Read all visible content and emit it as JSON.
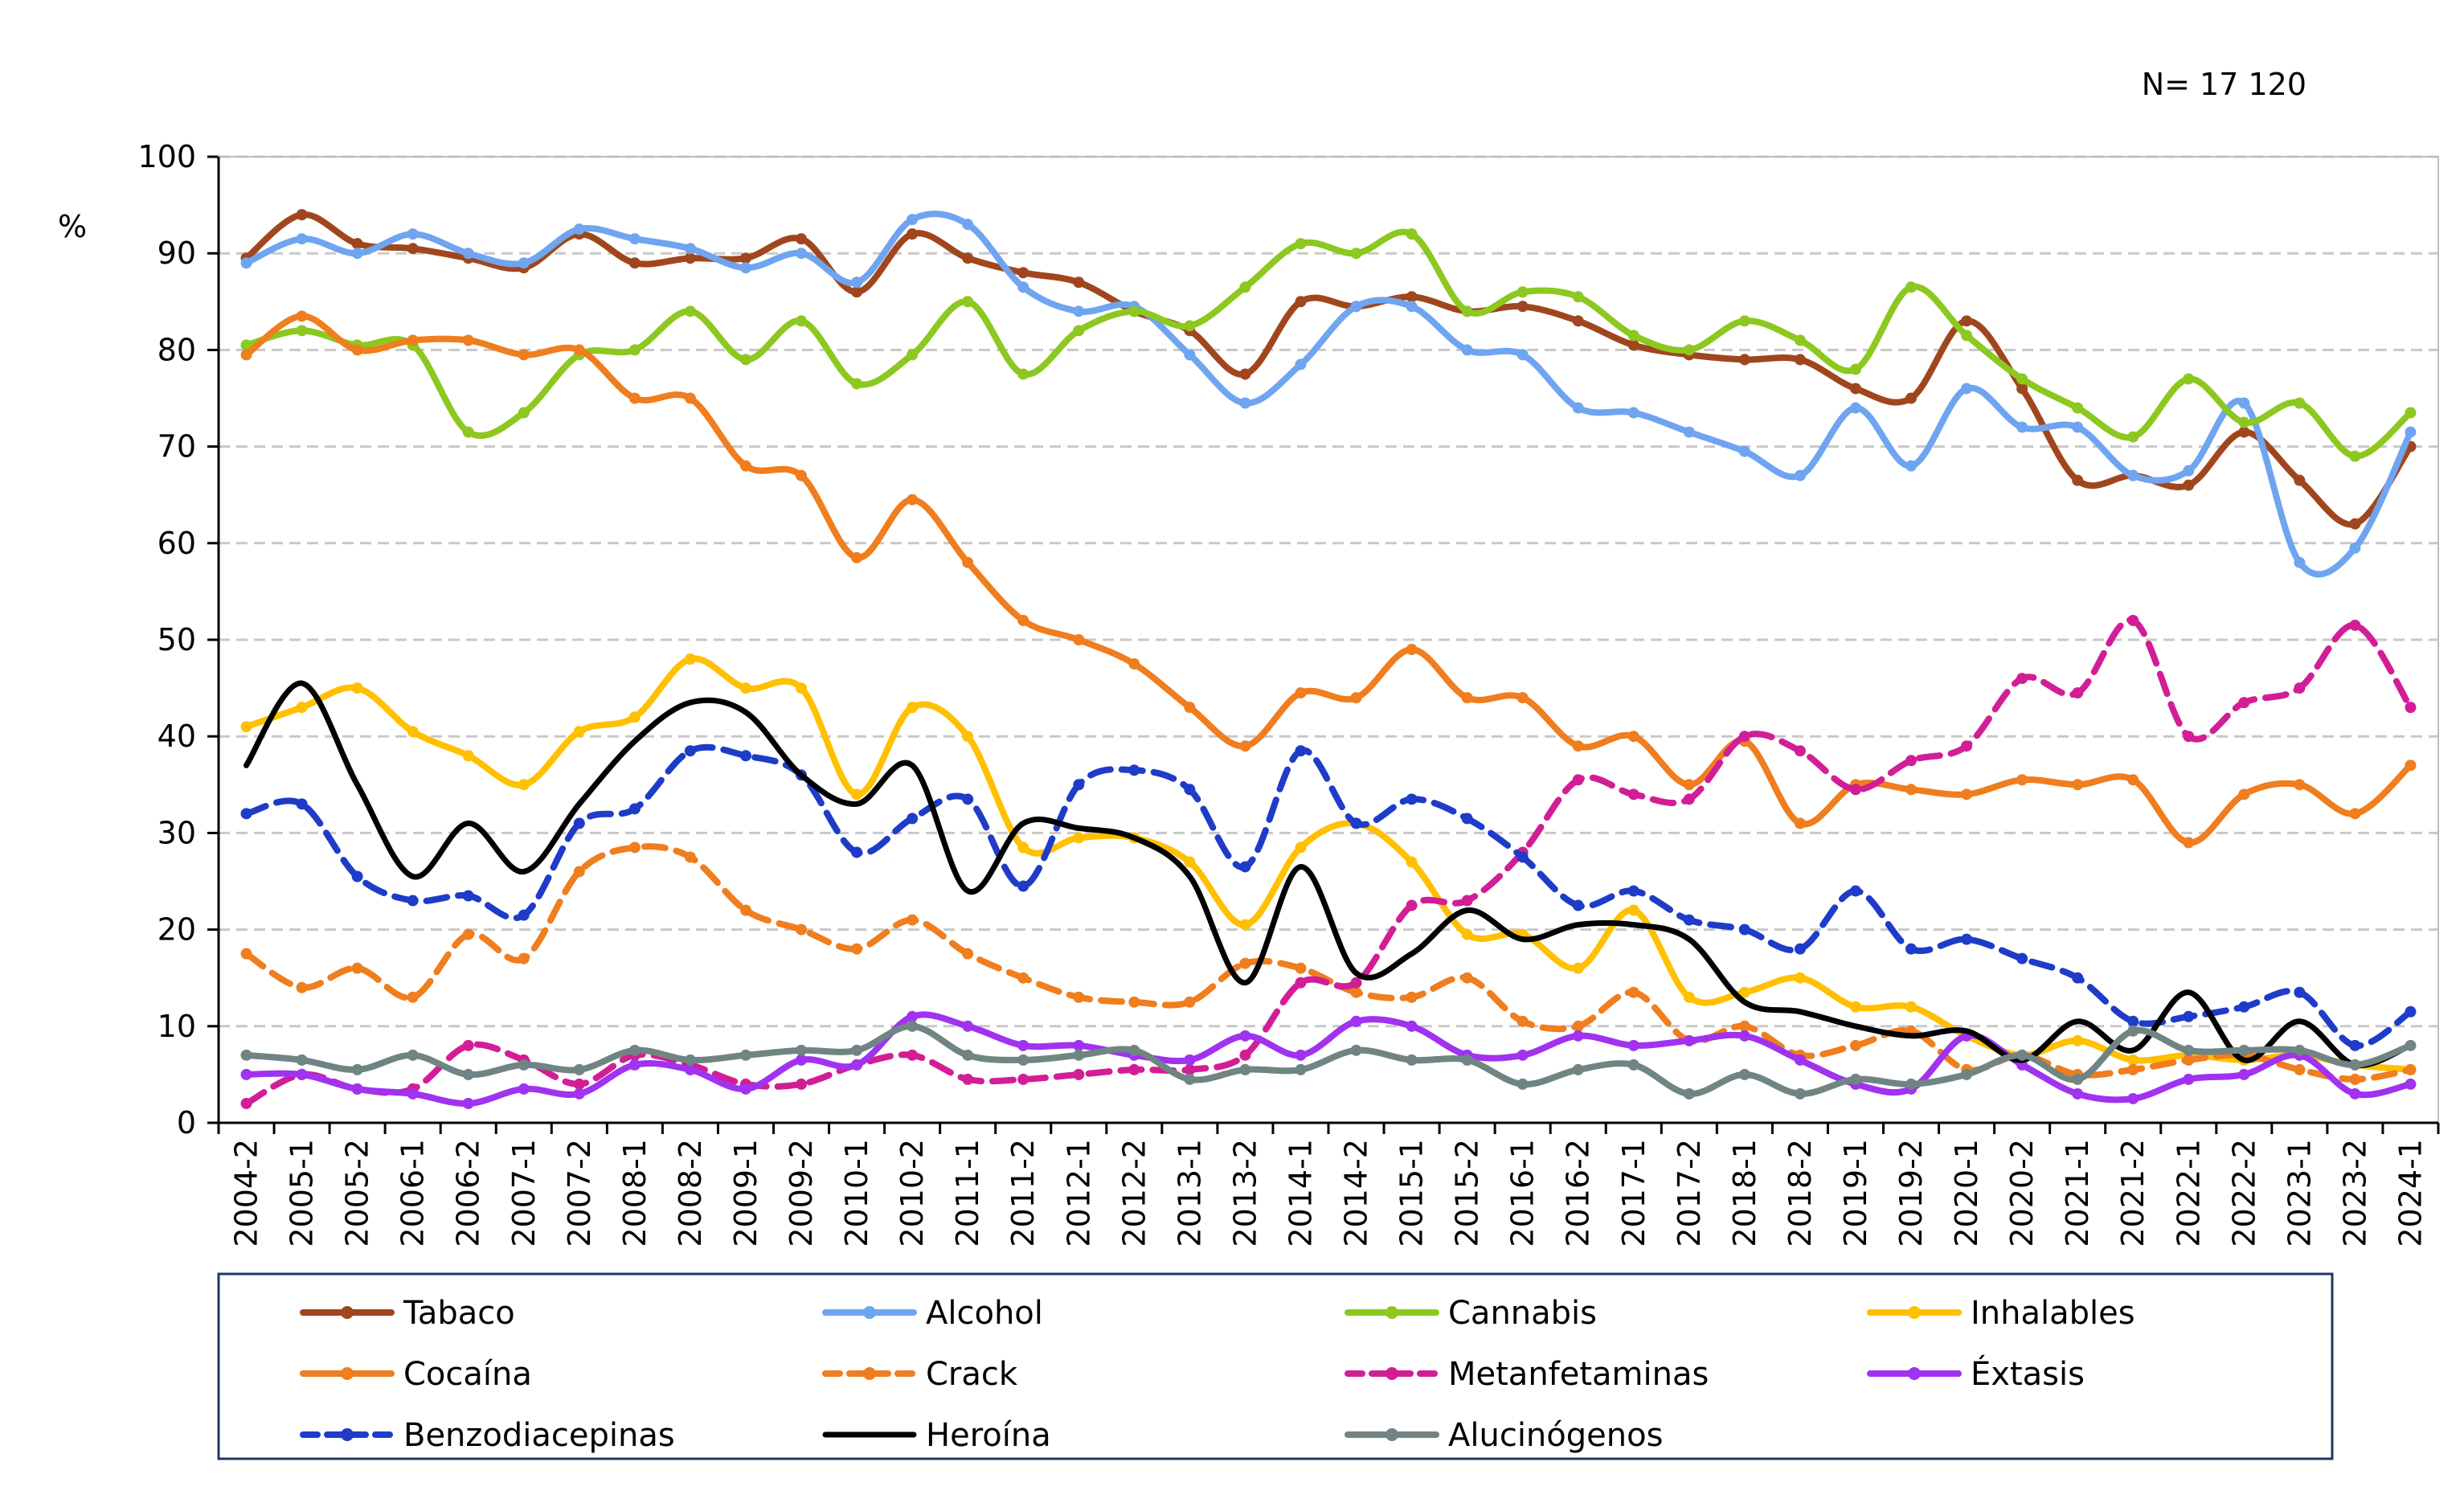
{
  "chart_data": {
    "type": "line",
    "title": "",
    "annotation": "N= 17 120",
    "xlabel": "",
    "ylabel": "%",
    "ylim": [
      0,
      100
    ],
    "yticks": [
      0,
      10,
      20,
      30,
      40,
      50,
      60,
      70,
      80,
      90,
      100
    ],
    "grid": "horizontal dashed",
    "legend_position": "bottom",
    "categories": [
      "2004-2",
      "2005-1",
      "2005-2",
      "2006-1",
      "2006-2",
      "2007-1",
      "2007-2",
      "2008-1",
      "2008-2",
      "2009-1",
      "2009-2",
      "2010-1",
      "2010-2",
      "2011-1",
      "2011-2",
      "2012-1",
      "2012-2",
      "2013-1",
      "2013-2",
      "2014-1",
      "2014-2",
      "2015-1",
      "2015-2",
      "2016-1",
      "2016-2",
      "2017-1",
      "2017-2",
      "2018-1",
      "2018-2",
      "2019-1",
      "2019-2",
      "2020-1",
      "2020-2",
      "2021-1",
      "2021-2",
      "2022-1",
      "2022-2",
      "2023-1",
      "2023-2",
      "2024-1"
    ],
    "series": [
      {
        "name": "Tabaco",
        "color": "#A0461E",
        "dash": "solid",
        "values": [
          89.5,
          94,
          91,
          90.5,
          89.5,
          88.5,
          92,
          89,
          89.5,
          89.5,
          91.5,
          86,
          92,
          89.5,
          88,
          87,
          84,
          82,
          77.5,
          85,
          84.5,
          85.5,
          84,
          84.5,
          83,
          80.5,
          79.5,
          79,
          79,
          76,
          75,
          83,
          76,
          66.5,
          67,
          66,
          71.5,
          66.5,
          62,
          70
        ]
      },
      {
        "name": "Alcohol",
        "color": "#6FA5F0",
        "dash": "solid",
        "values": [
          89,
          91.5,
          90,
          92,
          90,
          89,
          92.5,
          91.5,
          90.5,
          88.5,
          90,
          87,
          93.5,
          93,
          86.5,
          84,
          84.5,
          79.5,
          74.5,
          78.5,
          84.5,
          84.5,
          80,
          79.5,
          74,
          73.5,
          71.5,
          69.5,
          67,
          74,
          68,
          76,
          72,
          72,
          67,
          67.5,
          74.5,
          58,
          59.5,
          71.5
        ]
      },
      {
        "name": "Cannabis",
        "color": "#8CC820",
        "dash": "solid",
        "values": [
          80.5,
          82,
          80.5,
          80.5,
          71.5,
          73.5,
          79.5,
          80,
          84,
          79,
          83,
          76.5,
          79.5,
          85,
          77.5,
          82,
          84,
          82.5,
          86.5,
          91,
          90,
          92,
          84,
          86,
          85.5,
          81.5,
          80,
          83,
          81,
          78,
          86.5,
          81.5,
          77,
          74,
          71,
          77,
          72.5,
          74.5,
          69,
          73.5
        ]
      },
      {
        "name": "Inhalables",
        "color": "#FFC000",
        "dash": "solid",
        "values": [
          41,
          43,
          45,
          40.5,
          38,
          35,
          40.5,
          42,
          48,
          45,
          45,
          34,
          43,
          40,
          28.5,
          29.5,
          29.5,
          27,
          20.5,
          28.5,
          31,
          27,
          19.5,
          19.5,
          16,
          22,
          13,
          13.5,
          15,
          12,
          12,
          9,
          7,
          8.5,
          6.5,
          7,
          6.5,
          7,
          6,
          5.5
        ]
      },
      {
        "name": "Cocaína",
        "color": "#F07D1E",
        "dash": "solid",
        "values": [
          79.5,
          83.5,
          80,
          81,
          81,
          79.5,
          80,
          75,
          75,
          68,
          67,
          58.5,
          64.5,
          58,
          52,
          50,
          47.5,
          43,
          39,
          44.5,
          44,
          49,
          44,
          44,
          39,
          40,
          35,
          39.5,
          31,
          35,
          34.5,
          34,
          35.5,
          35,
          35.5,
          29,
          34,
          35,
          32,
          37
        ]
      },
      {
        "name": "Crack",
        "color": "#F07D1E",
        "dash": "dashed",
        "values": [
          17.5,
          14,
          16,
          13,
          19.5,
          17,
          26,
          28.5,
          27.5,
          22,
          20,
          18,
          21,
          17.5,
          15,
          13,
          12.5,
          12.5,
          16.5,
          16,
          13.5,
          13,
          15,
          10.5,
          10,
          13.5,
          8.5,
          10,
          7,
          8,
          9.5,
          5.5,
          7,
          5,
          5.5,
          6.5,
          7,
          5.5,
          4.5,
          5.5
        ]
      },
      {
        "name": "Metanfetaminas",
        "color": "#D21E96",
        "dash": "dashed",
        "values": [
          2,
          5,
          3.5,
          3.5,
          8,
          6.5,
          4,
          7,
          6,
          4,
          4,
          6,
          7,
          4.5,
          4.5,
          5,
          5.5,
          5.5,
          7,
          14.5,
          14.5,
          22.5,
          23,
          28,
          35.5,
          34,
          33.5,
          40,
          38.5,
          34.5,
          37.5,
          39,
          46,
          44.5,
          52,
          40,
          43.5,
          45,
          51.5,
          43
        ]
      },
      {
        "name": "Éxtasis",
        "color": "#A032F0",
        "dash": "solid",
        "values": [
          5,
          5,
          3.5,
          3,
          2,
          3.5,
          3,
          6,
          5.5,
          3.5,
          6.5,
          6,
          11,
          10,
          8,
          8,
          7,
          6.5,
          9,
          7,
          10.5,
          10,
          7,
          7,
          9,
          8,
          8.5,
          9,
          6.5,
          4,
          3.5,
          9,
          6,
          3,
          2.5,
          4.5,
          5,
          7,
          3,
          4
        ]
      },
      {
        "name": "Benzodiacepinas",
        "color": "#1E3CC8",
        "dash": "dashed",
        "values": [
          32,
          33,
          25.5,
          23,
          23.5,
          21.5,
          31,
          32.5,
          38.5,
          38,
          36,
          28,
          31.5,
          33.5,
          24.5,
          35,
          36.5,
          34.5,
          26.5,
          38.5,
          31,
          33.5,
          31.5,
          27.5,
          22.5,
          24,
          21,
          20,
          18,
          24,
          18,
          19,
          17,
          15,
          10.5,
          11,
          12,
          13.5,
          8,
          11.5
        ]
      },
      {
        "name": "Heroína",
        "color": "#000000",
        "dash": "solid",
        "values": [
          37,
          45.5,
          35,
          25.5,
          31,
          26,
          33,
          39.5,
          43.5,
          42.5,
          36,
          33,
          37,
          24,
          31,
          30.5,
          29.5,
          25.5,
          14.5,
          26.5,
          15.5,
          17.5,
          22,
          19,
          20.5,
          20.5,
          19,
          12.5,
          11.5,
          10,
          9,
          9.5,
          6.5,
          10.5,
          7.5,
          13.5,
          6.5,
          10.5,
          6,
          8
        ]
      },
      {
        "name": "Alucinógenos",
        "color": "#708484",
        "dash": "solid",
        "values": [
          7,
          6.5,
          5.5,
          7,
          5,
          6,
          5.5,
          7.5,
          6.5,
          7,
          7.5,
          7.5,
          10,
          7,
          6.5,
          7,
          7.5,
          4.5,
          5.5,
          5.5,
          7.5,
          6.5,
          6.5,
          4,
          5.5,
          6,
          3,
          5,
          3,
          4.5,
          4,
          5,
          7,
          4.5,
          9.5,
          7.5,
          7.5,
          7.5,
          6,
          8
        ]
      }
    ]
  }
}
